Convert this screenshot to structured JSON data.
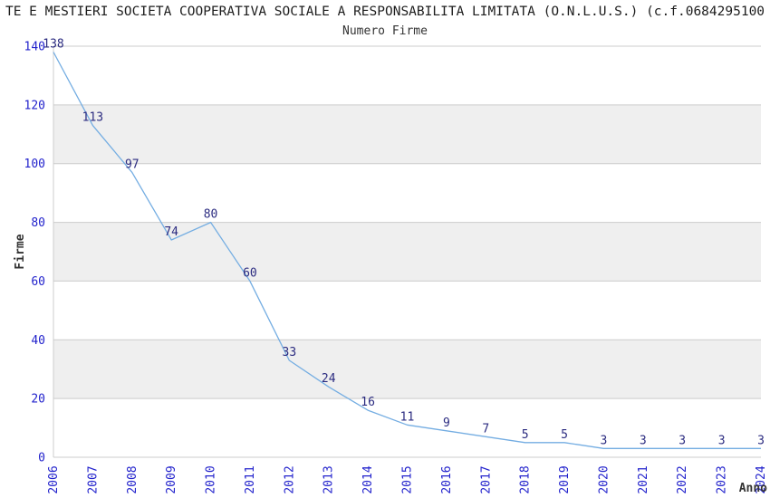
{
  "header": {
    "title": "TE E MESTIERI SOCIETA COOPERATIVA SOCIALE A RESPONSABILITA LIMITATA (O.N.L.U.S.) (c.f.0684295100",
    "subtitle": "Numero Firme"
  },
  "colors": {
    "tick_label": "#2222cc",
    "value_label": "#2b2b80",
    "line": "#74ade2",
    "grid": "#cccccc",
    "band": "#efefef",
    "axis_label": "#333333"
  },
  "chart_data": {
    "type": "line",
    "title": "Numero Firme",
    "xlabel": "Anno",
    "ylabel": "Firme",
    "x": [
      "2006",
      "2007",
      "2008",
      "2009",
      "2010",
      "2011",
      "2012",
      "2013",
      "2014",
      "2015",
      "2016",
      "2017",
      "2018",
      "2019",
      "2020",
      "2021",
      "2022",
      "2023",
      "2024"
    ],
    "values": [
      138,
      113,
      97,
      74,
      80,
      60,
      33,
      24,
      16,
      11,
      9,
      7,
      5,
      5,
      3,
      3,
      3,
      3,
      3
    ],
    "ylim": [
      0,
      140
    ],
    "yticks": [
      0,
      20,
      40,
      60,
      80,
      100,
      120,
      140
    ],
    "grid": true,
    "legend_position": "none",
    "point_labels": true,
    "band_pattern": "alternating-horizontal-gray"
  }
}
